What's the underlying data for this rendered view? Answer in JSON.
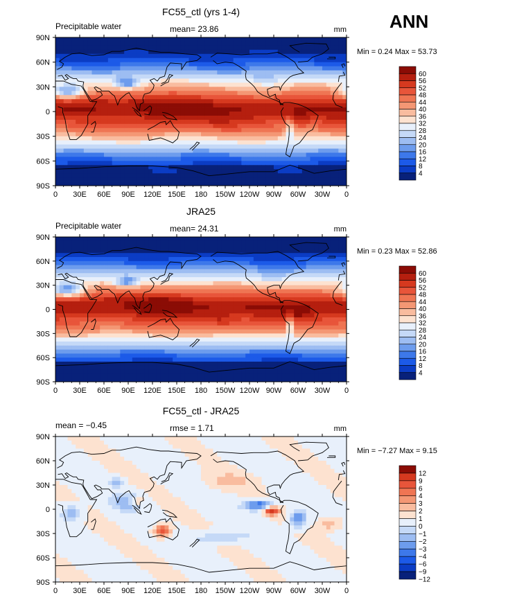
{
  "season": "ANN",
  "colors": {
    "abs_scale": [
      "#08217a",
      "#0b3cc4",
      "#1c5ae8",
      "#3d78ea",
      "#6d9ced",
      "#9dbdf2",
      "#c5d9f7",
      "#e8f0fb",
      "#fde2d0",
      "#f9bc9f",
      "#f49774",
      "#ef7553",
      "#e8553a",
      "#d6391f",
      "#b51f0f",
      "#8b0c05"
    ],
    "diff_scale": [
      "#08217a",
      "#0b3cc4",
      "#1c5ae8",
      "#3d78ea",
      "#6d9ced",
      "#9dbdf2",
      "#c5d9f7",
      "#e8f0fb",
      "#fde2d0",
      "#f9bc9f",
      "#f49774",
      "#ef7553",
      "#e8553a",
      "#d6391f",
      "#8b0c05"
    ]
  },
  "chart_data": [
    {
      "type": "heatmap",
      "title": "FC55_ctl (yrs 1-4)",
      "left_label": "Precipitable water",
      "center_label": "mean=  23.86",
      "units": "mm",
      "minmax": "Min =    0.24  Max =   53.73",
      "x_ticks": [
        "0",
        "30E",
        "60E",
        "90E",
        "120E",
        "150E",
        "180",
        "150W",
        "120W",
        "90W",
        "60W",
        "30W",
        "0"
      ],
      "y_ticks": [
        "90N",
        "60N",
        "30N",
        "0",
        "30S",
        "60S",
        "90S"
      ],
      "colorbar_levels": [
        "60",
        "56",
        "52",
        "48",
        "44",
        "40",
        "36",
        "32",
        "28",
        "24",
        "20",
        "16",
        "12",
        "8",
        "4"
      ],
      "min": 0.24,
      "max": 53.73,
      "mean": 23.86
    },
    {
      "type": "heatmap",
      "title": "JRA25",
      "left_label": "Precipitable water",
      "center_label": "mean=  24.31",
      "units": "mm",
      "minmax": "Min =    0.23  Max =   52.86",
      "x_ticks": [
        "0",
        "30E",
        "60E",
        "90E",
        "120E",
        "150E",
        "180",
        "150W",
        "120W",
        "90W",
        "60W",
        "30W",
        "0"
      ],
      "y_ticks": [
        "90N",
        "60N",
        "30N",
        "0",
        "30S",
        "60S",
        "90S"
      ],
      "colorbar_levels": [
        "60",
        "56",
        "52",
        "48",
        "44",
        "40",
        "36",
        "32",
        "28",
        "24",
        "20",
        "16",
        "12",
        "8",
        "4"
      ],
      "min": 0.23,
      "max": 52.86,
      "mean": 24.31
    },
    {
      "type": "heatmap",
      "title": "FC55_ctl - JRA25",
      "left_label": "mean =   −0.45",
      "center_label": "rmse =    1.71",
      "units": "mm",
      "minmax": "Min =   −7.27  Max =    9.15",
      "x_ticks": [
        "0",
        "30E",
        "60E",
        "90E",
        "120E",
        "150E",
        "180",
        "150W",
        "120W",
        "90W",
        "60W",
        "30W",
        "0"
      ],
      "y_ticks": [
        "90N",
        "60N",
        "30N",
        "0",
        "30S",
        "60S",
        "90S"
      ],
      "colorbar_levels": [
        "12",
        "9",
        "6",
        "4",
        "3",
        "2",
        "1",
        "0",
        "−1",
        "−2",
        "−3",
        "−4",
        "−6",
        "−9",
        "−12"
      ],
      "min": -7.27,
      "max": 9.15,
      "mean": -0.45,
      "rmse": 1.71
    }
  ]
}
